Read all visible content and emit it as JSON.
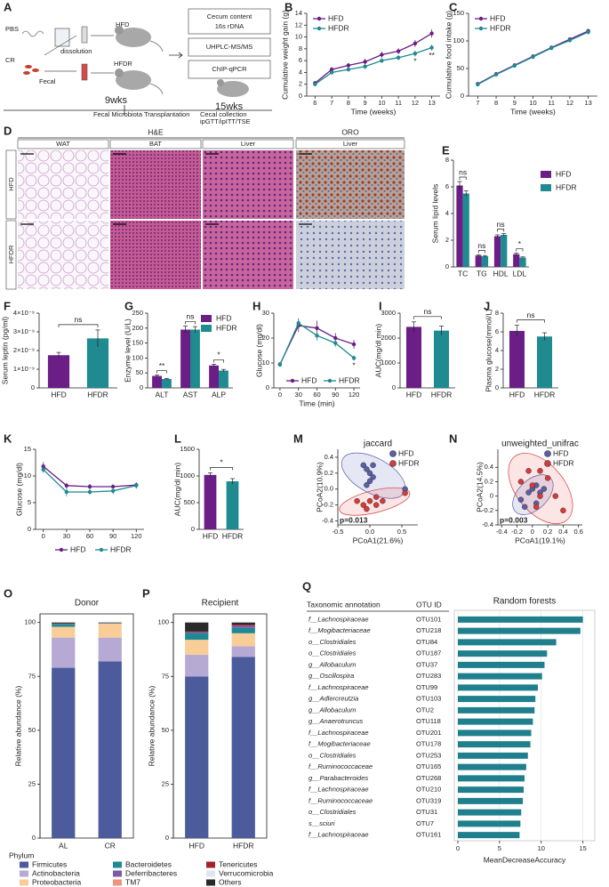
{
  "panel_a": {
    "label": "A",
    "pbs": "PBS",
    "cr": "CR",
    "dissolution": "dissolution",
    "fecal": "Fecal",
    "hfd": "HFD",
    "hfdr": "HFDR",
    "week_start": "9wks",
    "week_end": "15wks",
    "assay_1": [
      "Cecum content",
      "16s rDNA"
    ],
    "assay_2": "UHPLC-MS/MS",
    "assay_3": "ChIP-qPCR",
    "timeline": [
      "Fecal Microbiota Transplantation",
      "Cecal collection",
      "ipGTT/ipITT/TSE"
    ]
  },
  "panel_d": {
    "label": "D",
    "stains": [
      "H&E",
      "ORO"
    ],
    "tissues": [
      "WAT",
      "BAT",
      "Liver",
      "Liver"
    ],
    "groups": [
      "HFD",
      "HFDR"
    ]
  },
  "chart_data": [
    {
      "panel": "B",
      "type": "line",
      "x": [
        6,
        7,
        8,
        9,
        10,
        11,
        12,
        13
      ],
      "xlim": [
        5.5,
        13.5
      ],
      "xticks": [
        6,
        7,
        8,
        9,
        10,
        11,
        12,
        13
      ],
      "ylim": [
        0,
        14
      ],
      "yticks": [
        0,
        2,
        4,
        6,
        8,
        10,
        12,
        14
      ],
      "xlabel": "Time (weeks)",
      "ylabel": "Cumulative weight gain (g)",
      "series": [
        {
          "name": "HFD",
          "color": "#6b1e86",
          "values": [
            2.2,
            4.5,
            5.2,
            5.8,
            7.0,
            7.6,
            8.9,
            10.6
          ],
          "errors": [
            0.3,
            0.4,
            0.4,
            0.5,
            0.5,
            0.5,
            0.6,
            0.7
          ]
        },
        {
          "name": "HFDR",
          "color": "#1f8a8f",
          "values": [
            2.0,
            4.0,
            4.5,
            5.0,
            6.0,
            6.5,
            7.2,
            8.2
          ],
          "errors": [
            0.3,
            0.3,
            0.3,
            0.4,
            0.4,
            0.4,
            0.5,
            0.5
          ]
        }
      ],
      "annotations": [
        null,
        null,
        null,
        null,
        null,
        null,
        "*",
        "**"
      ]
    },
    {
      "panel": "C",
      "type": "line",
      "x": [
        7,
        8,
        9,
        10,
        11,
        12,
        13
      ],
      "xlim": [
        6.5,
        13.5
      ],
      "xticks": [
        7,
        8,
        9,
        10,
        11,
        12,
        13
      ],
      "ylim": [
        0,
        150
      ],
      "yticks": [
        0,
        50,
        100,
        150
      ],
      "xlabel": "Time (weeks)",
      "ylabel": "Cumulative food intake (g)",
      "series": [
        {
          "name": "HFD",
          "color": "#6b1e86",
          "values": [
            22,
            40,
            56,
            72,
            88,
            103,
            118
          ],
          "errors": [
            2,
            2,
            2,
            3,
            3,
            3,
            4
          ]
        },
        {
          "name": "HFDR",
          "color": "#1f8a8f",
          "values": [
            21,
            39,
            55,
            71,
            87,
            101,
            116
          ],
          "errors": [
            2,
            2,
            2,
            3,
            3,
            3,
            4
          ]
        }
      ]
    },
    {
      "panel": "E",
      "type": "bar",
      "categories": [
        "TC",
        "TG",
        "HDL",
        "LDL"
      ],
      "ylim": [
        0,
        8
      ],
      "yticks": [
        0,
        2,
        4,
        6,
        8
      ],
      "ylabel": "Serum lipid levels",
      "series": [
        {
          "name": "HFD",
          "color": "#6b1e86",
          "values": [
            6.1,
            0.85,
            2.3,
            0.95
          ],
          "errors": [
            0.3,
            0.05,
            0.1,
            0.08
          ]
        },
        {
          "name": "HFDR",
          "color": "#1f8a8f",
          "values": [
            5.5,
            0.8,
            2.4,
            0.7
          ],
          "errors": [
            0.2,
            0.05,
            0.1,
            0.05
          ]
        }
      ],
      "annotations": [
        "ns",
        "ns",
        "ns",
        "*"
      ]
    },
    {
      "panel": "F",
      "type": "bar",
      "categories": [
        "HFD",
        "HFDR"
      ],
      "values": [
        1.75e-09,
        2.65e-09
      ],
      "errors": [
        1.5e-10,
        4.5e-10
      ],
      "colors": [
        "#6b1e86",
        "#1f8a8f"
      ],
      "ylim": [
        0,
        4e-09
      ],
      "yticks": [
        0,
        {
          "value": 1e-09,
          "label": "1×10⁻⁹"
        },
        {
          "value": 2e-09,
          "label": "2×10⁻⁹"
        },
        {
          "value": 3e-09,
          "label": "3×10⁻⁹"
        },
        {
          "value": 4e-09,
          "label": "4×10⁻⁹"
        }
      ],
      "ylabel": "Serum leptin (pg/ml)",
      "annotation": "ns"
    },
    {
      "panel": "G",
      "type": "bar",
      "categories": [
        "ALT",
        "AST",
        "ALP"
      ],
      "ylim": [
        0,
        250
      ],
      "yticks": [
        0,
        50,
        100,
        150,
        200,
        250
      ],
      "ylabel": "Enzyme level (U/L)",
      "series": [
        {
          "name": "HFD",
          "color": "#6b1e86",
          "values": [
            40,
            195,
            75
          ],
          "errors": [
            3,
            12,
            4
          ]
        },
        {
          "name": "HFDR",
          "color": "#1f8a8f",
          "values": [
            30,
            195,
            58
          ],
          "errors": [
            2,
            10,
            4
          ]
        }
      ],
      "annotations": [
        "**",
        "ns",
        "*"
      ]
    },
    {
      "panel": "H",
      "type": "line",
      "x": [
        0,
        30,
        60,
        90,
        120
      ],
      "xlim": [
        -10,
        130
      ],
      "xticks": [
        0,
        30,
        60,
        90,
        120
      ],
      "ylim": [
        0,
        30
      ],
      "yticks": [
        0,
        10,
        20,
        30
      ],
      "xlabel": "Time (min)",
      "ylabel": "Glucose (mg/dl)",
      "series": [
        {
          "name": "HFD",
          "color": "#6b1e86",
          "values": [
            9.5,
            25,
            24,
            20,
            17.5
          ],
          "errors": [
            0.8,
            2.5,
            3,
            2,
            1.8
          ]
        },
        {
          "name": "HFDR",
          "color": "#1f8a8f",
          "values": [
            9.3,
            26,
            21,
            18,
            12
          ],
          "errors": [
            0.7,
            2,
            2,
            1.5,
            1
          ]
        }
      ],
      "annotations": [
        null,
        null,
        null,
        null,
        "*"
      ]
    },
    {
      "panel": "I",
      "type": "bar",
      "categories": [
        "HFD",
        "HFDR"
      ],
      "values": [
        2450,
        2300
      ],
      "errors": [
        200,
        180
      ],
      "colors": [
        "#6b1e86",
        "#1f8a8f"
      ],
      "ylim": [
        0,
        3000
      ],
      "yticks": [
        0,
        1000,
        2000,
        3000
      ],
      "ylabel": "AUC(mg/dl min)",
      "annotation": "ns"
    },
    {
      "panel": "J",
      "type": "bar",
      "categories": [
        "HFD",
        "HFDR"
      ],
      "values": [
        6.1,
        5.5
      ],
      "errors": [
        0.6,
        0.4
      ],
      "colors": [
        "#6b1e86",
        "#1f8a8f"
      ],
      "ylim": [
        0,
        8
      ],
      "yticks": [
        0,
        2,
        4,
        6,
        8
      ],
      "ylabel": "Plasma glucose(mmol/L)",
      "annotation": "ns"
    },
    {
      "panel": "K",
      "type": "line",
      "x": [
        0,
        30,
        60,
        90,
        120
      ],
      "xlim": [
        -10,
        130
      ],
      "xticks": [
        0,
        30,
        60,
        90,
        120
      ],
      "ylim": [
        0,
        15
      ],
      "yticks": [
        0,
        5,
        10,
        15
      ],
      "ylabel": "Glucose (mg/dl)",
      "series": [
        {
          "name": "HFD",
          "color": "#6b1e86",
          "values": [
            11.8,
            8.2,
            8.0,
            8.0,
            8.3
          ],
          "errors": [
            0.8,
            0.5,
            0.5,
            0.4,
            0.5
          ]
        },
        {
          "name": "HFDR",
          "color": "#1f8a8f",
          "values": [
            11.2,
            7.0,
            7.0,
            7.2,
            8.2
          ],
          "errors": [
            0.6,
            0.8,
            0.5,
            0.6,
            0.6
          ]
        }
      ]
    },
    {
      "panel": "L",
      "type": "bar",
      "categories": [
        "HFD",
        "HFDR"
      ],
      "values": [
        1020,
        900
      ],
      "errors": [
        40,
        50
      ],
      "colors": [
        "#6b1e86",
        "#1f8a8f"
      ],
      "ylim": [
        0,
        1500
      ],
      "yticks": [
        0,
        500,
        1000,
        1500
      ],
      "ylabel": "AUC(mg/dl min)",
      "annotation": "*"
    },
    {
      "panel": "M",
      "type": "scatter",
      "title": "jaccard",
      "xlabel": "PCoA1(21.6%)",
      "ylabel": "PCoA2(10.9%)",
      "xlim": [
        -0.5,
        0.75
      ],
      "xticks": [
        -0.5,
        {
          "value": 0,
          "label": "0.0"
        },
        0.5
      ],
      "ylim": [
        -0.45,
        0.5
      ],
      "yticks": [
        -0.4,
        -0.2,
        {
          "value": 0,
          "label": "0.0"
        },
        0.2,
        0.4
      ],
      "annotation": "p=0.013",
      "series": [
        {
          "name": "HFD",
          "color": "#5a5fa8",
          "x": [
            -0.1,
            -0.05,
            0,
            0.05,
            0,
            -0.05,
            0.55,
            0.05
          ],
          "y": [
            0.3,
            0.25,
            0.2,
            0.15,
            0.1,
            0.05,
            0.0,
            0.3
          ]
        },
        {
          "name": "HFDR",
          "color": "#d83a3a",
          "x": [
            -0.2,
            -0.1,
            0,
            0.1,
            0.2,
            -0.05,
            0.55,
            0.1
          ],
          "y": [
            -0.15,
            -0.2,
            -0.15,
            -0.2,
            -0.15,
            -0.25,
            -0.05,
            -0.1
          ]
        }
      ]
    },
    {
      "panel": "N",
      "type": "scatter",
      "title": "unweighted_unifrac",
      "xlabel": "PCoA1(19.1%)",
      "ylabel": "PCoA2(14.5%)",
      "xlim": [
        -0.45,
        0.65
      ],
      "xticks": [
        -0.4,
        -0.2,
        0,
        0.2,
        0.4,
        0.6
      ],
      "ylim": [
        -0.4,
        0.65
      ],
      "yticks": [
        -0.4,
        -0.2,
        0,
        0.2,
        0.4
      ],
      "annotation": "p=0.003",
      "series": [
        {
          "name": "HFD",
          "color": "#5a5fa8",
          "x": [
            -0.15,
            -0.05,
            0,
            0.05,
            0.1,
            -0.1,
            0.05,
            0.15
          ],
          "y": [
            -0.05,
            0.05,
            0.1,
            0.15,
            0.05,
            -0.15,
            -0.1,
            0.1
          ]
        },
        {
          "name": "HFDR",
          "color": "#d83a3a",
          "x": [
            -0.05,
            0.1,
            0.2,
            -0.15,
            0,
            0.1,
            0.3,
            0.4,
            0.05
          ],
          "y": [
            0.35,
            0.35,
            0.25,
            0.2,
            0.15,
            0.0,
            0.0,
            -0.2,
            -0.15
          ]
        }
      ]
    },
    {
      "panel": "O",
      "type": "stacked",
      "title": "Donor",
      "categories": [
        "AL",
        "CR"
      ],
      "ylim": [
        0,
        104
      ],
      "yticks": [
        0,
        25,
        50,
        75,
        100
      ],
      "ylabel": "Relative abundance (%)",
      "legend_title": "Phylum",
      "series": [
        {
          "name": "Firmicutes",
          "color": "#4b5b9c",
          "values": [
            79,
            82
          ]
        },
        {
          "name": "Actinobacteria",
          "color": "#b6a9d3",
          "values": [
            14,
            11
          ]
        },
        {
          "name": "Proteobacteria",
          "color": "#f8cd98",
          "values": [
            5,
            6.5
          ]
        },
        {
          "name": "Bacteroidetes",
          "color": "#1c8a94",
          "values": [
            1.2,
            0.2
          ]
        },
        {
          "name": "Deferribacteres",
          "color": "#7b5aa6",
          "values": [
            0.2,
            0
          ]
        },
        {
          "name": "TM7",
          "color": "#f0957d",
          "values": [
            0,
            0
          ]
        },
        {
          "name": "Tenericutes",
          "color": "#a3222a",
          "values": [
            0.1,
            0.1
          ]
        },
        {
          "name": "Verrucomicrobia",
          "color": "#dfe6ec",
          "values": [
            0,
            0
          ]
        },
        {
          "name": "Others",
          "color": "#2a2a2a",
          "values": [
            0.5,
            0.2
          ]
        }
      ]
    },
    {
      "panel": "P",
      "type": "stacked",
      "title": "Recipient",
      "categories": [
        "HFD",
        "HFDR"
      ],
      "ylim": [
        0,
        104
      ],
      "yticks": [
        0,
        25,
        50,
        75,
        100
      ],
      "ylabel": "Relative abundance (%)",
      "series": [
        {
          "values": [
            75,
            84
          ]
        },
        {
          "values": [
            10,
            5
          ]
        },
        {
          "values": [
            7,
            6
          ]
        },
        {
          "values": [
            3,
            2.5
          ]
        },
        {
          "values": [
            0.5,
            1
          ]
        },
        {
          "values": [
            0,
            0
          ]
        },
        {
          "values": [
            0.3,
            0.5
          ]
        },
        {
          "values": [
            0,
            0
          ]
        },
        {
          "values": [
            4.2,
            1
          ]
        }
      ]
    },
    {
      "panel": "Q",
      "type": "hbar",
      "title": "Random forests",
      "annotation_header": "Taxonomic annotation",
      "category_header": "OTU ID",
      "xlabel": "MeanDecreaseAccuracy",
      "xlim": [
        0,
        16
      ],
      "xticks": [
        0,
        5,
        10,
        15
      ],
      "grid": true,
      "color": "#1f7f8c",
      "annotations": [
        "f__Lachnospiraceae",
        "f__Mogibacteriaceae",
        "o__Clostridiales",
        "o__Clostridiales",
        "g__Allobaculum",
        "g__Oscillospira",
        "f__Lachnospiraceae",
        "g__Adlercreutzia",
        "g__Allobaculum",
        "g__Anaerotruncus",
        "f__Lachnospiraceae",
        "f__Mogibacteriaceae",
        "o__Clostridiales",
        "f__Ruminococcaceae",
        "g__Parabacteroides",
        "f__Lachnospiraceae",
        "f__Ruminococcaceae",
        "o__Clostridiales",
        "s__sciuri",
        "f__Lachnospiraceae"
      ],
      "categories": [
        "OTU101",
        "OTU218",
        "OTU84",
        "OTU187",
        "OTU37",
        "OTU283",
        "OTU99",
        "OTU103",
        "OTU2",
        "OTU118",
        "OTU201",
        "OTU178",
        "OTU253",
        "OTU165",
        "OTU268",
        "OTU210",
        "OTU319",
        "OTU31",
        "OTU7",
        "OTU161"
      ],
      "values": [
        15,
        14.7,
        11.8,
        10.7,
        10.4,
        10.1,
        9.6,
        9.3,
        9.2,
        9.0,
        8.8,
        8.7,
        8.4,
        8.2,
        8.0,
        7.9,
        7.8,
        7.6,
        7.5,
        7.4
      ]
    }
  ]
}
